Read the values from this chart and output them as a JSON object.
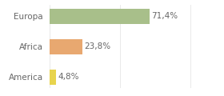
{
  "categories": [
    "America",
    "Africa",
    "Europa"
  ],
  "values": [
    4.8,
    23.8,
    71.4
  ],
  "labels": [
    "4,8%",
    "23,8%",
    "71,4%"
  ],
  "bar_colors": [
    "#e8d44d",
    "#e8a870",
    "#a8bf8a"
  ],
  "background_color": "#ffffff",
  "label_fontsize": 7.5,
  "tick_fontsize": 7.5,
  "tick_color": "#666666",
  "label_color": "#666666",
  "xlim": [
    0,
    105
  ]
}
